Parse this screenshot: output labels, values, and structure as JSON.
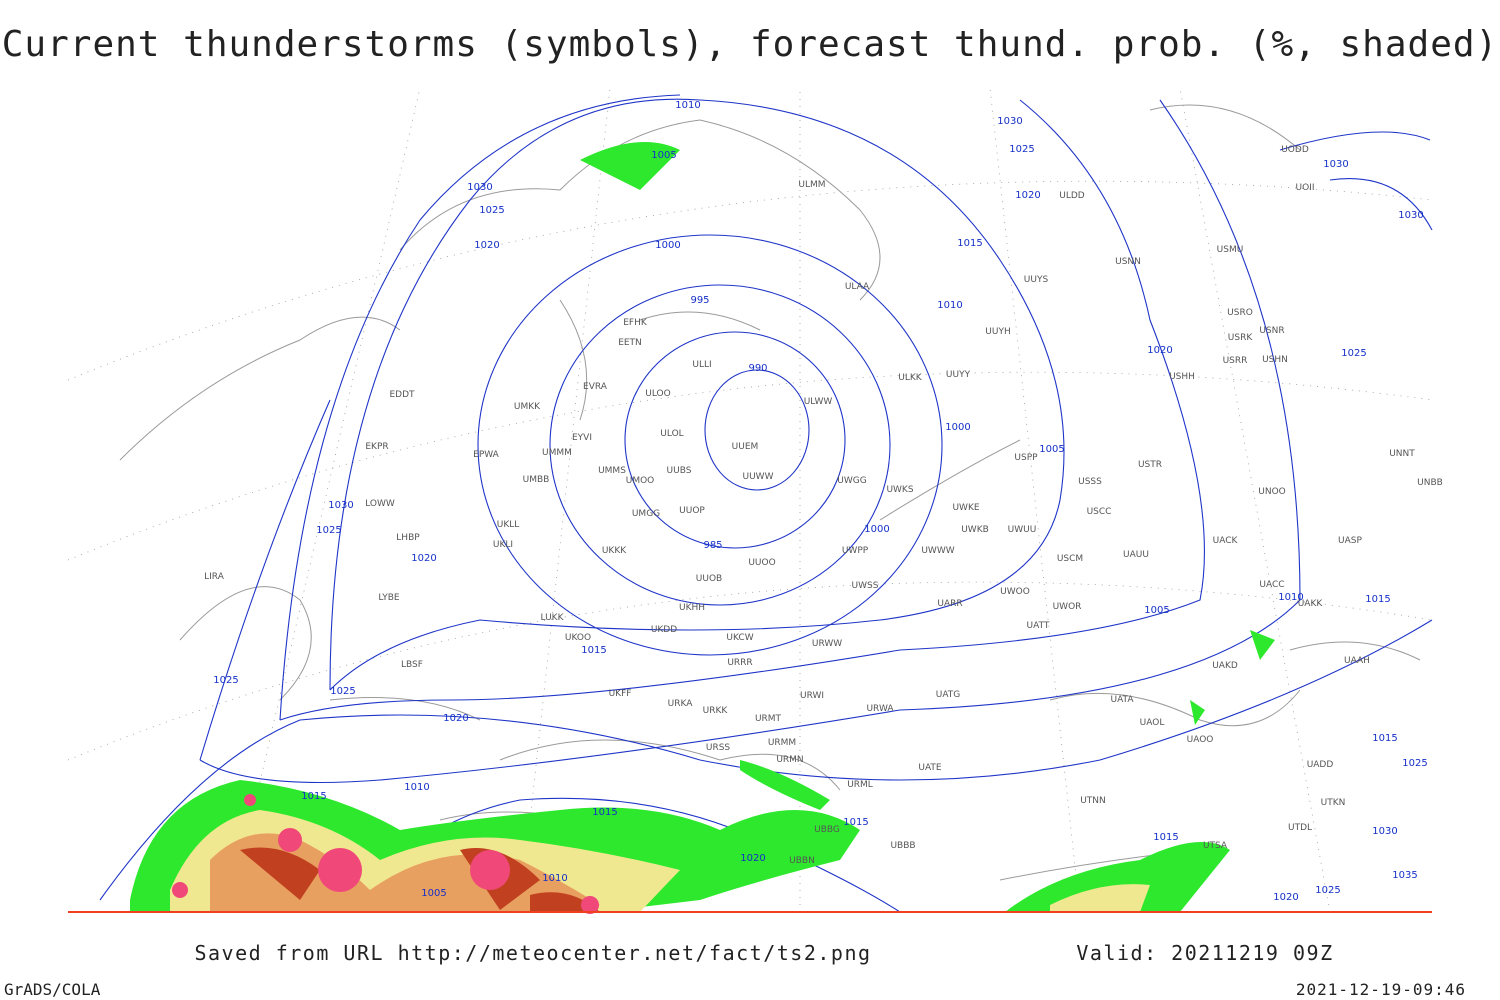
{
  "title": "Current thunderstorms (symbols), forecast thund. prob. (%, shaded)",
  "footer": {
    "source": "Saved from URL http://meteocenter.net/fact/ts2.png",
    "valid": "Valid: 20211219 09Z",
    "software": "GrADS/COLA",
    "timestamp": "2021-12-19-09:46"
  },
  "stations": [
    "UODD",
    "UOII",
    "ULMM",
    "ULDD",
    "USNN",
    "USMU",
    "ULAA",
    "UUYS",
    "USRO",
    "USRK",
    "USNR",
    "USRR",
    "USHN",
    "EFHK",
    "EETN",
    "ULLI",
    "UUYH",
    "USHH",
    "ULKK",
    "UUYY",
    "EVRA",
    "ULOO",
    "ULWW",
    "UMKK",
    "EDDT",
    "UUEM",
    "ULOL",
    "UMMS",
    "UUBS",
    "UMMM",
    "EYVI",
    "EPWA",
    "EKPR",
    "UUWW",
    "UMOO",
    "UWGG",
    "UWKS",
    "USSS",
    "USTR",
    "UNOO",
    "UNNT",
    "UNBB",
    "USPP",
    "UMBB",
    "LOWW",
    "UMGG",
    "UUOP",
    "UWKE",
    "UWKB",
    "UWUU",
    "USCC",
    "UKLL",
    "UKLI",
    "LHBP",
    "UKKK",
    "UUOO",
    "UWPP",
    "UWWW",
    "USCM",
    "UAUU",
    "UACK",
    "UASP",
    "LIRA",
    "UUOB",
    "LYBE",
    "UKHH",
    "UWSS",
    "UARR",
    "UWOO",
    "UWOR",
    "UACC",
    "UAKK",
    "LUKK",
    "UKDD",
    "UKOO",
    "URWW",
    "UATT",
    "UKCW",
    "LBSF",
    "URRR",
    "UAAH",
    "UAKD",
    "UKFF",
    "URKA",
    "URKK",
    "URWI",
    "UATG",
    "URWA",
    "UATA",
    "UAOL",
    "URMT",
    "URMM",
    "UAOO",
    "URSS",
    "UATE",
    "URMN",
    "URML",
    "UTNN",
    "UBBB",
    "UBBN",
    "UBBG",
    "UTSA",
    "UTDL",
    "UTKN",
    "UADD"
  ],
  "isobar_labels": [
    "1010",
    "1030",
    "1025",
    "1030",
    "1030",
    "1005",
    "1030",
    "1025",
    "1020",
    "1020",
    "1015",
    "1000",
    "995",
    "1010",
    "1020",
    "1025",
    "990",
    "1000",
    "1005",
    "1030",
    "1025",
    "985",
    "1000",
    "1020",
    "1005",
    "1010",
    "1015",
    "1015",
    "1025",
    "1025",
    "1020",
    "1015",
    "1010",
    "1015",
    "1015",
    "1020",
    "1010",
    "1005",
    "1015",
    "1020",
    "1030",
    "1025",
    "1035",
    "1025",
    "1015"
  ]
}
